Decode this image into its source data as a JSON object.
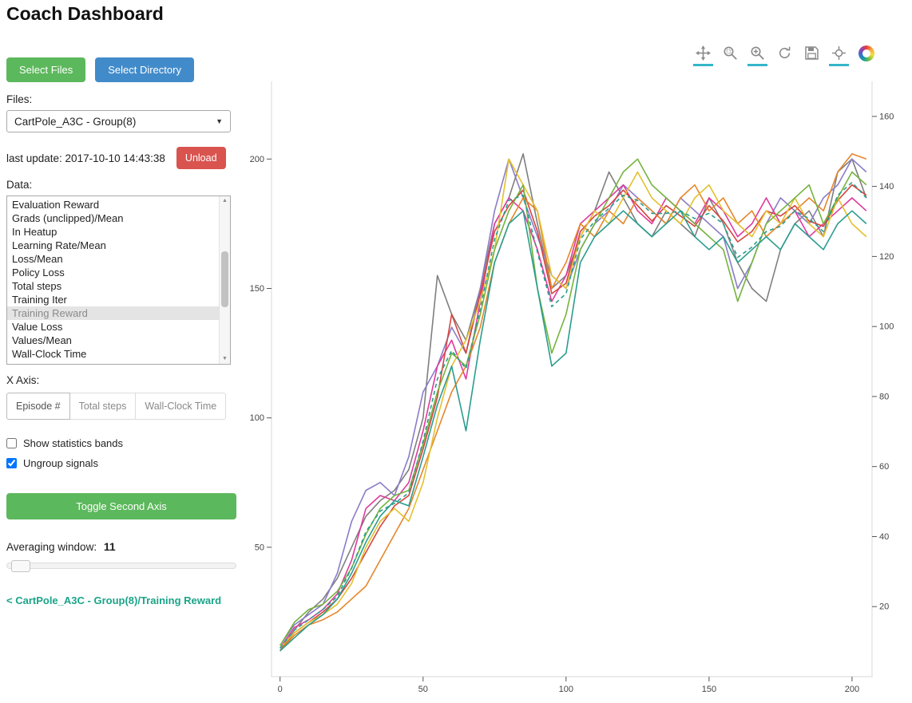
{
  "header": {
    "title": "Coach Dashboard"
  },
  "icons": {
    "caret_down": "▼",
    "scroll_up": "▲",
    "scroll_down": "▼"
  },
  "sidebar": {
    "select_files_label": "Select Files",
    "select_directory_label": "Select Directory",
    "files": {
      "label": "Files:",
      "selected": "CartPole_A3C - Group(8)"
    },
    "last_update": "last update: 2017-10-10 14:43:38",
    "unload_label": "Unload",
    "data_list": {
      "label": "Data:",
      "items": [
        "Evaluation Reward",
        "Grads (unclipped)/Mean",
        "In Heatup",
        "Learning Rate/Mean",
        "Loss/Mean",
        "Policy Loss",
        "Total steps",
        "Training Iter",
        "Training Reward",
        "Value Loss",
        "Values/Mean",
        "Wall-Clock Time"
      ],
      "selected": "Training Reward"
    },
    "x_axis": {
      "label": "X Axis:",
      "options": [
        "Episode #",
        "Total steps",
        "Wall-Clock Time"
      ],
      "selected": "Episode #"
    },
    "checkboxes": [
      {
        "name": "show-statistics-bands",
        "label": "Show statistics bands",
        "checked": false
      },
      {
        "name": "ungroup-signals",
        "label": "Ungroup signals",
        "checked": true
      }
    ],
    "toggle_second_axis_label": "Toggle Second Axis",
    "averaging": {
      "label": "Averaging window:",
      "value": "11"
    },
    "breadcrumb": "< CartPole_A3C - Group(8)/Training Reward"
  },
  "plot": {
    "toolbar": {
      "tools": [
        {
          "name": "pan-tool",
          "active": true
        },
        {
          "name": "box-zoom-tool",
          "active": false
        },
        {
          "name": "wheel-zoom-tool",
          "active": true
        },
        {
          "name": "reset-tool",
          "active": false
        },
        {
          "name": "save-tool",
          "active": false
        },
        {
          "name": "hover-tool",
          "active": true
        },
        {
          "name": "bokeh-logo",
          "active": false
        }
      ]
    }
  },
  "colors": {
    "button_green": "#5cb85c",
    "button_blue": "#428bca",
    "button_red": "#d9534f",
    "link_teal": "#1aa489",
    "active_tool_underline": "#35b5c9",
    "selected_list_bg": "#e4e4e4"
  },
  "chart_data": {
    "type": "line",
    "title": "",
    "xlabel": "",
    "ylabel": "",
    "grid": false,
    "legend": "none",
    "xlim": [
      -3,
      207
    ],
    "ylim": [
      0,
      230
    ],
    "y2lim": [
      0,
      170
    ],
    "xticks": [
      0,
      50,
      100,
      150,
      200
    ],
    "yticks": [
      50,
      100,
      150,
      200
    ],
    "y2ticks": [
      20,
      40,
      60,
      80,
      100,
      120,
      140,
      160
    ],
    "x": [
      0,
      5,
      10,
      15,
      20,
      25,
      30,
      35,
      40,
      45,
      50,
      55,
      60,
      65,
      70,
      75,
      80,
      85,
      90,
      95,
      100,
      105,
      110,
      115,
      120,
      125,
      130,
      135,
      140,
      145,
      150,
      155,
      160,
      165,
      170,
      175,
      180,
      185,
      190,
      195,
      200,
      205
    ],
    "series": [
      {
        "name": "worker-gray",
        "color": "#7f7f7f",
        "values": [
          10,
          18,
          25,
          30,
          38,
          50,
          62,
          68,
          72,
          80,
          100,
          155,
          140,
          130,
          150,
          175,
          185,
          202,
          175,
          150,
          155,
          170,
          180,
          195,
          185,
          175,
          170,
          180,
          175,
          170,
          185,
          175,
          160,
          150,
          145,
          165,
          175,
          180,
          170,
          195,
          200,
          185
        ]
      },
      {
        "name": "worker-purple",
        "color": "#8b7cc8",
        "values": [
          12,
          20,
          24,
          28,
          40,
          60,
          72,
          75,
          70,
          85,
          110,
          120,
          135,
          125,
          150,
          180,
          200,
          185,
          170,
          155,
          150,
          165,
          175,
          180,
          190,
          185,
          180,
          175,
          185,
          180,
          175,
          170,
          150,
          160,
          175,
          185,
          180,
          175,
          185,
          190,
          200,
          195
        ]
      },
      {
        "name": "worker-magenta",
        "color": "#e03a9c",
        "values": [
          11,
          19,
          22,
          26,
          32,
          45,
          65,
          70,
          68,
          75,
          95,
          120,
          130,
          115,
          145,
          175,
          185,
          180,
          165,
          145,
          155,
          175,
          180,
          185,
          190,
          180,
          175,
          185,
          180,
          175,
          185,
          180,
          170,
          175,
          185,
          175,
          180,
          170,
          175,
          180,
          185,
          180
        ]
      },
      {
        "name": "worker-red",
        "color": "#d6453f",
        "values": [
          10,
          17,
          21,
          25,
          30,
          38,
          48,
          58,
          66,
          70,
          88,
          108,
          140,
          125,
          148,
          172,
          182,
          188,
          172,
          148,
          152,
          172,
          178,
          182,
          188,
          182,
          176,
          182,
          178,
          174,
          182,
          176,
          168,
          172,
          180,
          178,
          182,
          176,
          174,
          184,
          190,
          186
        ]
      },
      {
        "name": "worker-orange",
        "color": "#e6862b",
        "values": [
          10,
          16,
          20,
          22,
          25,
          30,
          35,
          45,
          55,
          65,
          80,
          95,
          110,
          120,
          135,
          160,
          175,
          185,
          180,
          150,
          160,
          175,
          170,
          180,
          175,
          185,
          180,
          175,
          185,
          190,
          180,
          185,
          175,
          180,
          170,
          175,
          180,
          185,
          180,
          195,
          202,
          200
        ]
      },
      {
        "name": "worker-yellow",
        "color": "#e3c02f",
        "values": [
          11,
          17,
          21,
          24,
          28,
          36,
          50,
          60,
          65,
          60,
          75,
          100,
          120,
          130,
          145,
          165,
          200,
          190,
          180,
          155,
          150,
          170,
          180,
          175,
          185,
          195,
          185,
          180,
          175,
          185,
          190,
          180,
          175,
          170,
          180,
          175,
          185,
          175,
          170,
          185,
          175,
          170
        ]
      },
      {
        "name": "worker-green",
        "color": "#74b33e",
        "values": [
          12,
          21,
          26,
          28,
          33,
          42,
          55,
          65,
          70,
          72,
          90,
          110,
          125,
          120,
          140,
          165,
          180,
          190,
          150,
          125,
          140,
          165,
          175,
          185,
          195,
          200,
          190,
          185,
          180,
          175,
          170,
          165,
          145,
          160,
          175,
          180,
          185,
          190,
          175,
          185,
          195,
          190
        ]
      },
      {
        "name": "worker-teal",
        "color": "#2a9d8f",
        "values": [
          10,
          15,
          20,
          24,
          30,
          40,
          52,
          62,
          68,
          66,
          85,
          105,
          120,
          95,
          130,
          160,
          175,
          180,
          150,
          120,
          125,
          160,
          170,
          175,
          180,
          175,
          170,
          175,
          180,
          170,
          165,
          170,
          160,
          165,
          170,
          165,
          175,
          170,
          165,
          175,
          180,
          175
        ]
      },
      {
        "name": "mean-dashed",
        "color": "#2a9d8f",
        "dash": "5 4",
        "values": [
          11,
          18,
          22,
          26,
          31,
          42,
          56,
          64,
          67,
          71,
          91,
          115,
          126,
          119,
          142,
          169,
          184,
          186,
          164,
          143,
          148,
          169,
          176,
          181,
          186,
          184,
          179,
          179,
          180,
          177,
          179,
          175,
          162,
          166,
          172,
          174,
          180,
          177,
          172,
          186,
          191,
          185
        ]
      }
    ]
  }
}
